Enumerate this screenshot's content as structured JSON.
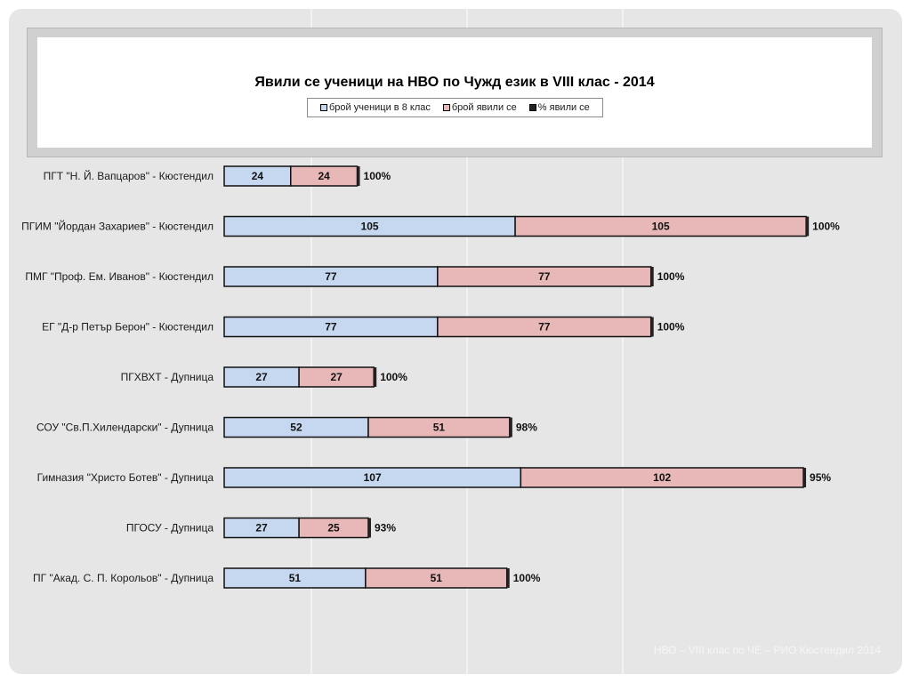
{
  "chart_data": {
    "type": "bar",
    "orientation": "horizontal",
    "stacked": true,
    "title": "Явили се ученици на НВО по Чужд език в VIII клас - 2014",
    "categories": [
      "ПГТ \"Н. Й. Вапцаров\" - Кюстендил",
      "ПГИМ \"Йордан Захариев\" - Кюстендил",
      "ПМГ \"Проф. Ем. Иванов\" - Кюстендил",
      "ЕГ \"Д-р Петър Берон\" - Кюстендил",
      "ПГХВХТ - Дупница",
      "СОУ \"Св.П.Хилендарски\" - Дупница",
      "Гимназия \"Христо Ботев\" - Дупница",
      "ПГОСУ - Дупница",
      "ПГ \"Акад. С. П. Корольов\" - Дупница"
    ],
    "series": [
      {
        "name": "брой ученици в 8 клас",
        "color": "#c5d8ef",
        "values": [
          24,
          105,
          77,
          77,
          27,
          52,
          107,
          27,
          51
        ]
      },
      {
        "name": "брой явили се",
        "color": "#e8b7b7",
        "values": [
          24,
          105,
          77,
          77,
          27,
          51,
          102,
          25,
          51
        ]
      },
      {
        "name": "% явили се",
        "color": "#222222",
        "values": [
          100,
          100,
          100,
          100,
          100,
          98,
          95,
          93,
          100
        ],
        "labels": [
          "100%",
          "100%",
          "100%",
          "100%",
          "100%",
          "98%",
          "95%",
          "93%",
          "100%"
        ]
      }
    ],
    "legend_position": "top",
    "grid": true
  },
  "footer": "НВО – VIII клас по ЧЕ – РИО Кюстендил 2014"
}
